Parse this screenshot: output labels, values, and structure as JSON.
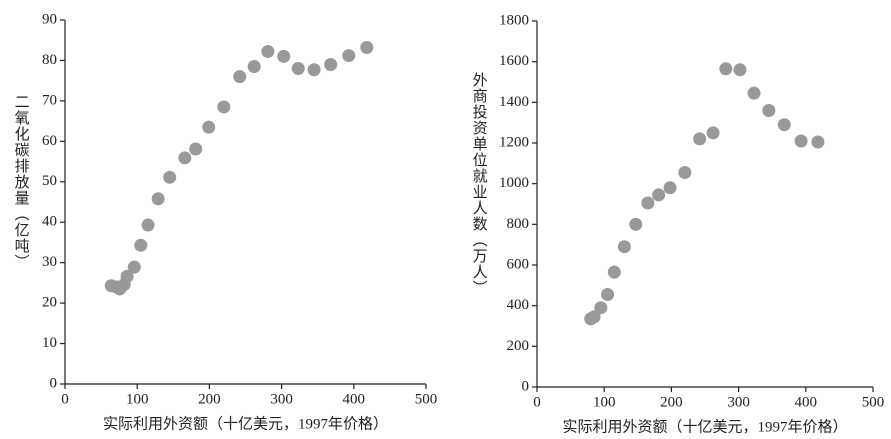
{
  "chart_data": [
    {
      "type": "scatter",
      "x_label": "实际利用外资额（十亿美元，1997年价格）",
      "y_label": "二氧化碳排放量（亿吨）",
      "x": [
        64,
        71,
        76,
        82,
        86,
        96,
        105,
        115,
        129,
        145,
        166,
        181,
        199,
        220,
        242,
        262,
        281,
        303,
        323,
        345,
        368,
        393,
        418
      ],
      "values": [
        24.3,
        24,
        23.5,
        24.6,
        26.6,
        28.9,
        34.3,
        39.3,
        45.8,
        51.1,
        55.9,
        58.1,
        63.5,
        68.5,
        76.0,
        78.5,
        82.2,
        81.0,
        78.0,
        77.7,
        79.0,
        81.2,
        83.2
      ],
      "color": "#999999",
      "xlim": [
        0,
        500
      ],
      "xticks": [
        0,
        100,
        200,
        300,
        400,
        500
      ],
      "ylim": [
        0,
        90
      ],
      "yticks": [
        0,
        10,
        20,
        30,
        40,
        50,
        60,
        70,
        80,
        90
      ]
    },
    {
      "type": "scatter",
      "x_label": "实际利用外资额（十亿美元，1997年价格）",
      "y_label": "外商投资单位就业人数（万人）",
      "x": [
        80,
        85,
        95,
        105,
        115,
        130,
        147,
        165,
        181,
        198,
        220,
        242,
        262,
        281,
        302,
        323,
        345,
        368,
        393,
        418
      ],
      "values": [
        335,
        345,
        390,
        455,
        565,
        690,
        800,
        905,
        945,
        980,
        1055,
        1220,
        1250,
        1565,
        1560,
        1445,
        1360,
        1290,
        1210,
        1205
      ],
      "color": "#999999",
      "xlim": [
        0,
        500
      ],
      "xticks": [
        0,
        100,
        200,
        300,
        400,
        500
      ],
      "ylim": [
        0,
        1800
      ],
      "yticks": [
        0,
        200,
        400,
        600,
        800,
        1000,
        1200,
        1400,
        1600,
        1800
      ]
    }
  ]
}
